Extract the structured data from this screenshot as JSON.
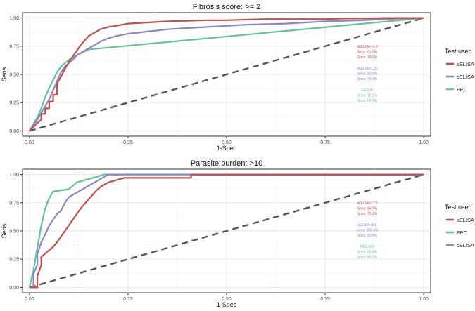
{
  "colors": {
    "sELISA": "#c0504d",
    "cELISA": "#8c86c4",
    "FEC": "#66c29a",
    "diagonal": "#555555",
    "grid": "#e6e6e6",
    "axis_text": "#4d4d4d"
  },
  "chart_data": [
    {
      "type": "line",
      "title": "Fibrosis score: >= 2",
      "xlabel": "1-Spec",
      "ylabel": "Sens",
      "xlim": [
        0,
        1
      ],
      "ylim": [
        0,
        1
      ],
      "xticks": [
        "0.00",
        "0.25",
        "0.50",
        "0.75",
        "1.00"
      ],
      "yticks": [
        "0.00",
        "0.25",
        "0.50",
        "0.75",
        "1.00"
      ],
      "grid": true,
      "legend_title": "Test used",
      "legend_position": "right",
      "legend": [
        "sELISA",
        "cELISA",
        "FEC"
      ],
      "series": [
        {
          "name": "sELISA",
          "x": [
            0,
            0.02,
            0.03,
            0.03,
            0.04,
            0.04,
            0.05,
            0.05,
            0.06,
            0.06,
            0.07,
            0.07,
            0.08,
            0.09,
            0.1,
            0.11,
            0.12,
            0.13,
            0.14,
            0.15,
            0.16,
            0.17,
            0.18,
            0.2,
            0.22,
            0.25,
            0.3,
            0.35,
            0.4,
            0.45,
            0.5,
            0.55,
            0.6,
            0.65,
            0.7,
            0.75,
            0.8,
            0.85,
            0.9,
            0.95,
            1.0
          ],
          "y": [
            0,
            0.07,
            0.1,
            0.15,
            0.15,
            0.2,
            0.2,
            0.26,
            0.26,
            0.32,
            0.32,
            0.42,
            0.48,
            0.55,
            0.61,
            0.66,
            0.71,
            0.76,
            0.8,
            0.84,
            0.86,
            0.88,
            0.9,
            0.92,
            0.93,
            0.95,
            0.96,
            0.97,
            0.975,
            0.98,
            0.98,
            0.985,
            0.99,
            0.99,
            0.99,
            0.99,
            0.995,
            0.995,
            1.0,
            1.0,
            1.0
          ]
        },
        {
          "name": "cELISA",
          "x": [
            0,
            0.02,
            0.03,
            0.04,
            0.05,
            0.06,
            0.07,
            0.08,
            0.09,
            0.1,
            0.11,
            0.12,
            0.14,
            0.16,
            0.18,
            0.2,
            0.22,
            0.25,
            0.3,
            0.35,
            0.4,
            0.45,
            0.5,
            0.55,
            0.6,
            0.65,
            0.7,
            0.75,
            0.8,
            0.85,
            0.9,
            0.95,
            1.0
          ],
          "y": [
            0,
            0.1,
            0.16,
            0.22,
            0.28,
            0.36,
            0.44,
            0.52,
            0.57,
            0.6,
            0.63,
            0.67,
            0.71,
            0.75,
            0.79,
            0.82,
            0.84,
            0.86,
            0.88,
            0.9,
            0.91,
            0.92,
            0.93,
            0.94,
            0.945,
            0.95,
            0.96,
            0.97,
            0.975,
            0.98,
            0.99,
            0.995,
            1.0
          ]
        },
        {
          "name": "FEC",
          "x": [
            0,
            0.02,
            0.03,
            0.04,
            0.05,
            0.06,
            0.07,
            0.08,
            0.09,
            0.1,
            0.12,
            0.15,
            1.0
          ],
          "y": [
            0,
            0.12,
            0.2,
            0.3,
            0.38,
            0.45,
            0.52,
            0.57,
            0.6,
            0.63,
            0.67,
            0.721,
            1.0
          ]
        }
      ],
      "annotations": [
        {
          "series": "sELISA",
          "lines": [
            "sELISA>14.0",
            "Sens: 91.6%",
            "Spec: 79.6%"
          ]
        },
        {
          "series": "cELISA",
          "lines": [
            "cELISA>1.05",
            "Sens: 82.6%",
            "Spec: 79.0%"
          ]
        },
        {
          "series": "FEC",
          "lines": [
            "FEC>0",
            "Sens: 72.1%",
            "Spec: 84.8%"
          ]
        }
      ]
    },
    {
      "type": "line",
      "title": "Parasite burden: >10",
      "xlabel": "1-Spec",
      "ylabel": "Sens",
      "xlim": [
        0,
        1
      ],
      "ylim": [
        0,
        1
      ],
      "xticks": [
        "0.00",
        "0.25",
        "0.50",
        "0.75",
        "1.00"
      ],
      "yticks": [
        "0.00",
        "0.25",
        "0.50",
        "0.75",
        "1.00"
      ],
      "grid": true,
      "legend_title": "Test used",
      "legend_position": "right",
      "legend": [
        "sELISA",
        "FEC",
        "cELISA"
      ],
      "series": [
        {
          "name": "sELISA",
          "x": [
            0,
            0.02,
            0.02,
            0.03,
            0.03,
            0.04,
            0.05,
            0.06,
            0.07,
            0.08,
            0.09,
            0.1,
            0.11,
            0.12,
            0.13,
            0.14,
            0.15,
            0.16,
            0.17,
            0.18,
            0.19,
            0.2,
            0.22,
            0.24,
            0.25,
            0.41,
            0.41,
            1.0
          ],
          "y": [
            0,
            0,
            0.1,
            0.2,
            0.27,
            0.3,
            0.33,
            0.36,
            0.4,
            0.45,
            0.5,
            0.55,
            0.6,
            0.65,
            0.7,
            0.74,
            0.78,
            0.82,
            0.86,
            0.89,
            0.91,
            0.93,
            0.95,
            0.97,
            0.97,
            0.97,
            1.0,
            1.0
          ]
        },
        {
          "name": "cELISA",
          "x": [
            0,
            0.01,
            0.01,
            0.02,
            0.02,
            0.03,
            0.04,
            0.05,
            0.06,
            0.07,
            0.08,
            0.09,
            0.1,
            0.12,
            0.14,
            0.16,
            0.18,
            0.19,
            0.2,
            1.0
          ],
          "y": [
            0,
            0,
            0.12,
            0.2,
            0.3,
            0.4,
            0.47,
            0.55,
            0.6,
            0.65,
            0.68,
            0.75,
            0.8,
            0.84,
            0.88,
            0.92,
            0.96,
            0.98,
            1.0,
            1.0
          ]
        },
        {
          "name": "FEC",
          "x": [
            0,
            0.01,
            0.02,
            0.03,
            0.04,
            0.05,
            0.06,
            0.08,
            0.1,
            0.12,
            0.14,
            0.16,
            0.18,
            0.19,
            1.0
          ],
          "y": [
            0,
            0.15,
            0.35,
            0.55,
            0.7,
            0.79,
            0.85,
            0.86,
            0.87,
            0.93,
            0.95,
            0.97,
            0.99,
            1.0,
            1.0
          ]
        }
      ],
      "annotations": [
        {
          "series": "sELISA",
          "lines": [
            "sELISA>17.5",
            "Sens: 96.9%",
            "Spec: 75.1%"
          ]
        },
        {
          "series": "cELISA",
          "lines": [
            "cELISA>6.8",
            "Sens: 100.0%",
            "Spec: 80.4%"
          ]
        },
        {
          "series": "FEC",
          "lines": [
            "FEC>0.4",
            "Sens: 93.8%",
            "Spec: 86.7%"
          ]
        }
      ]
    }
  ]
}
